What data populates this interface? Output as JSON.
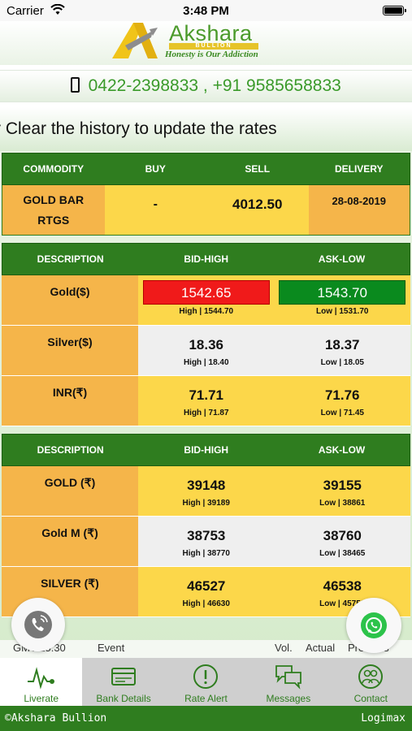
{
  "status_bar": {
    "carrier": "Carrier",
    "time": "3:48 PM"
  },
  "header": {
    "brand_name": "Akshara",
    "brand_sub": "BULLION",
    "tagline": "Honesty is Our Addiction",
    "phone_text": "0422-2398833 , +91 9585658833"
  },
  "marquee_text": "r Clear the history to update the rates",
  "commodity_table": {
    "headers": [
      "COMMODITY",
      "BUY",
      "SELL",
      "DELIVERY"
    ],
    "row": {
      "name_line1": "GOLD BAR",
      "name_line2": "RTGS",
      "buy": "-",
      "sell": "4012.50",
      "delivery": "28-08-2019"
    }
  },
  "spot_table": {
    "headers": [
      "DESCRIPTION",
      "BID-HIGH",
      "ASK-LOW"
    ],
    "rows": [
      {
        "name": "Gold($)",
        "bid": "1542.65",
        "bid_sub": "High | 1544.70",
        "ask": "1543.70",
        "ask_sub": "Low | 1531.70"
      },
      {
        "name": "Silver($)",
        "bid": "18.36",
        "bid_sub": "High | 18.40",
        "ask": "18.37",
        "ask_sub": "Low | 18.05"
      },
      {
        "name": "INR(₹)",
        "bid": "71.71",
        "bid_sub": "High | 71.87",
        "ask": "71.76",
        "ask_sub": "Low | 71.45"
      }
    ]
  },
  "local_table": {
    "headers": [
      "DESCRIPTION",
      "BID-HIGH",
      "ASK-LOW"
    ],
    "rows": [
      {
        "name": "GOLD (₹)",
        "bid": "39148",
        "bid_sub": "High | 39189",
        "ask": "39155",
        "ask_sub": "Low | 38861"
      },
      {
        "name": "Gold M (₹)",
        "bid": "38753",
        "bid_sub": "High | 38770",
        "ask": "38760",
        "ask_sub": "Low | 38465"
      },
      {
        "name": "SILVER (₹)",
        "bid": "46527",
        "bid_sub": "High | 46630",
        "ask": "46538",
        "ask_sub": "Low | 45750"
      }
    ]
  },
  "news_strip": {
    "time": "GMT 15:30",
    "event": "Event",
    "vol": "Vol.",
    "actual": "Actual",
    "previous": "Previous"
  },
  "tabs": [
    {
      "label": "Liverate",
      "icon": "pulse-icon"
    },
    {
      "label": "Bank Details",
      "icon": "card-icon"
    },
    {
      "label": "Rate Alert",
      "icon": "alert-icon"
    },
    {
      "label": "Messages",
      "icon": "messages-icon"
    },
    {
      "label": "Contact",
      "icon": "contact-icon"
    }
  ],
  "footer": {
    "left": "©Akshara Bullion",
    "right": "Logimax"
  },
  "colors": {
    "primary_green": "#2f7d1f",
    "cell_orange": "#f5b54a",
    "cell_yellow": "#fcd74a",
    "bid_red": "#f01a1a",
    "ask_green": "#0a8a1e"
  }
}
